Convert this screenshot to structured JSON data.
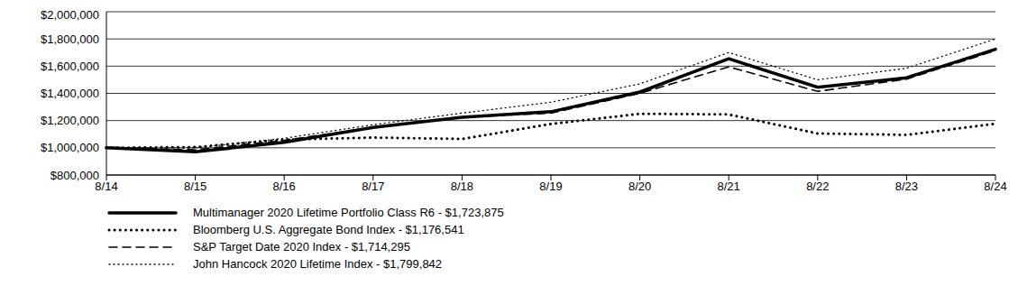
{
  "chart_data": {
    "type": "line",
    "categories": [
      "8/14",
      "8/15",
      "8/16",
      "8/17",
      "8/18",
      "8/19",
      "8/20",
      "8/21",
      "8/22",
      "8/23",
      "8/24"
    ],
    "ylim": [
      800000,
      2000000
    ],
    "yticks": [
      {
        "value": 800000,
        "label": "$800,000"
      },
      {
        "value": 1000000,
        "label": "$1,000,000"
      },
      {
        "value": 1200000,
        "label": "$1,200,000"
      },
      {
        "value": 1400000,
        "label": "$1,400,000"
      },
      {
        "value": 1600000,
        "label": "$1,600,000"
      },
      {
        "value": 1800000,
        "label": "$1,800,000"
      },
      {
        "value": 2000000,
        "label": "$2,000,000"
      }
    ],
    "grid": true,
    "legend": "bottom",
    "series": [
      {
        "name": "Multimanager 2020 Lifetime Portfolio Class R6 - $1,723,875",
        "color": "#000000",
        "line_style": "solid",
        "values": [
          1000000,
          970000,
          1040000,
          1150000,
          1225000,
          1265000,
          1410000,
          1655000,
          1445000,
          1515000,
          1723875
        ]
      },
      {
        "name": "Bloomberg U.S. Aggregate Bond Index - $1,176,541",
        "color": "#000000",
        "line_style": "dotted",
        "values": [
          1000000,
          1005000,
          1060000,
          1075000,
          1065000,
          1175000,
          1250000,
          1245000,
          1105000,
          1095000,
          1176541
        ]
      },
      {
        "name": "S&P Target Date 2020 Index - $1,714,295",
        "color": "#000000",
        "line_style": "dashed",
        "values": [
          1000000,
          985000,
          1055000,
          1150000,
          1225000,
          1255000,
          1400000,
          1595000,
          1415000,
          1505000,
          1714295
        ]
      },
      {
        "name": "John Hancock 2020 Lifetime Index - $1,799,842",
        "color": "#000000",
        "line_style": "dotted",
        "values": [
          1000000,
          1000000,
          1070000,
          1170000,
          1255000,
          1335000,
          1470000,
          1700000,
          1500000,
          1585000,
          1799842
        ]
      }
    ]
  }
}
